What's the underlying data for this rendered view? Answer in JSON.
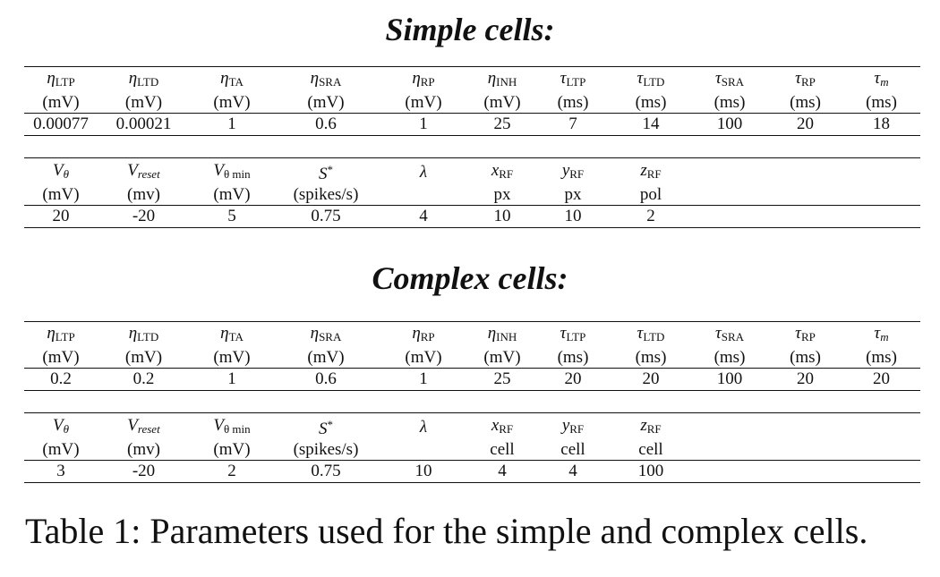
{
  "simple": {
    "title": "Simple cells:",
    "table1": {
      "symbols": [
        {
          "base": "η",
          "sub": "LTP"
        },
        {
          "base": "η",
          "sub": "LTD"
        },
        {
          "base": "η",
          "sub": "TA"
        },
        {
          "base": "η",
          "sub": "SRA"
        },
        {
          "base": "η",
          "sub": "RP"
        },
        {
          "base": "η",
          "sub": "INH"
        },
        {
          "base": "τ",
          "sub": "LTP"
        },
        {
          "base": "τ",
          "sub": "LTD"
        },
        {
          "base": "τ",
          "sub": "SRA"
        },
        {
          "base": "τ",
          "sub": "RP"
        },
        {
          "base": "τ",
          "sub": "m",
          "sub_italic": true
        }
      ],
      "units": [
        "(mV)",
        "(mV)",
        "(mV)",
        "(mV)",
        "(mV)",
        "(mV)",
        "(ms)",
        "(ms)",
        "(ms)",
        "(ms)",
        "(ms)"
      ],
      "values": [
        "0.00077",
        "0.00021",
        "1",
        "0.6",
        "1",
        "25",
        "7",
        "14",
        "100",
        "20",
        "18"
      ]
    },
    "table2": {
      "symbols": [
        {
          "base": "V",
          "sub": "θ",
          "sub_italic": true
        },
        {
          "base": "V",
          "sub": "reset",
          "sub_italic": true
        },
        {
          "base": "V",
          "sub": "θ min"
        },
        {
          "base": "S",
          "sup": "*"
        },
        {
          "base": "λ"
        },
        {
          "base": "x",
          "sub": "RF"
        },
        {
          "base": "y",
          "sub": "RF"
        },
        {
          "base": "z",
          "sub": "RF"
        },
        {
          "base": ""
        },
        {
          "base": ""
        },
        {
          "base": ""
        }
      ],
      "units": [
        "(mV)",
        "(mv)",
        "(mV)",
        "(spikes/s)",
        "",
        "px",
        "px",
        "pol",
        "",
        "",
        ""
      ],
      "values": [
        "20",
        "-20",
        "5",
        "0.75",
        "4",
        "10",
        "10",
        "2",
        "",
        "",
        ""
      ]
    }
  },
  "complex": {
    "title": "Complex cells:",
    "table1": {
      "symbols": [
        {
          "base": "η",
          "sub": "LTP"
        },
        {
          "base": "η",
          "sub": "LTD"
        },
        {
          "base": "η",
          "sub": "TA"
        },
        {
          "base": "η",
          "sub": "SRA"
        },
        {
          "base": "η",
          "sub": "RP"
        },
        {
          "base": "η",
          "sub": "INH"
        },
        {
          "base": "τ",
          "sub": "LTP"
        },
        {
          "base": "τ",
          "sub": "LTD"
        },
        {
          "base": "τ",
          "sub": "SRA"
        },
        {
          "base": "τ",
          "sub": "RP"
        },
        {
          "base": "τ",
          "sub": "m",
          "sub_italic": true
        }
      ],
      "units": [
        "(mV)",
        "(mV)",
        "(mV)",
        "(mV)",
        "(mV)",
        "(mV)",
        "(ms)",
        "(ms)",
        "(ms)",
        "(ms)",
        "(ms)"
      ],
      "values": [
        "0.2",
        "0.2",
        "1",
        "0.6",
        "1",
        "25",
        "20",
        "20",
        "100",
        "20",
        "20"
      ]
    },
    "table2": {
      "symbols": [
        {
          "base": "V",
          "sub": "θ",
          "sub_italic": true
        },
        {
          "base": "V",
          "sub": "reset",
          "sub_italic": true
        },
        {
          "base": "V",
          "sub": "θ min"
        },
        {
          "base": "S",
          "sup": "*"
        },
        {
          "base": "λ"
        },
        {
          "base": "x",
          "sub": "RF"
        },
        {
          "base": "y",
          "sub": "RF"
        },
        {
          "base": "z",
          "sub": "RF"
        },
        {
          "base": ""
        },
        {
          "base": ""
        },
        {
          "base": ""
        }
      ],
      "units": [
        "(mV)",
        "(mv)",
        "(mV)",
        "(spikes/s)",
        "",
        "cell",
        "cell",
        "cell",
        "",
        "",
        ""
      ],
      "values": [
        "3",
        "-20",
        "2",
        "0.75",
        "10",
        "4",
        "4",
        "100",
        "",
        "",
        ""
      ]
    }
  },
  "caption": "Table 1: Parameters used for the simple and complex cells."
}
